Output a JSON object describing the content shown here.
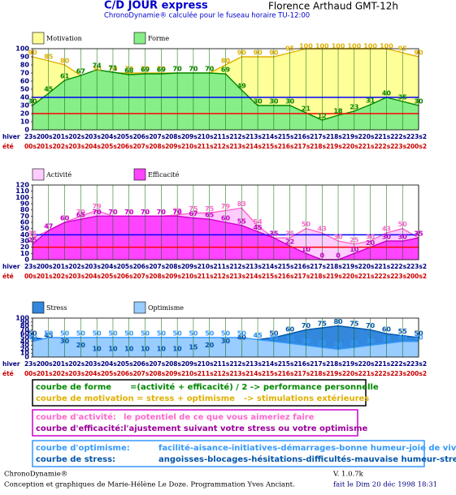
{
  "header": {
    "title": "C/D JOUR express",
    "name": "Florence Arthaud GMT-12h",
    "subtitle": "ChronoDynamie® calculée pour le fuseau horaire TU-12:00"
  },
  "chart_data": [
    {
      "type": "area",
      "ylim": [
        0,
        100
      ],
      "yticks": [
        0,
        10,
        20,
        30,
        40,
        50,
        60,
        70,
        80,
        90,
        100
      ],
      "grid": true,
      "category_row_label": "hiver",
      "secondary_row_label": "été",
      "categories": [
        "23s2",
        "00s2",
        "01s2",
        "02s2",
        "03s2",
        "04s2",
        "05s2",
        "06s2",
        "07s2",
        "08s2",
        "09s2",
        "10s2",
        "11s2",
        "12s2",
        "13s2",
        "14s2",
        "15s2",
        "16s2",
        "17s2",
        "18s2",
        "19s2",
        "20s2",
        "21s2",
        "22s2",
        "23s2"
      ],
      "secondary_categories": [
        "00s2",
        "01s2",
        "02s2",
        "03s2",
        "04s2",
        "05s2",
        "06s2",
        "07s2",
        "08s2",
        "09s2",
        "10s2",
        "11s2",
        "12s2",
        "13s2",
        "14s2",
        "15s2",
        "16s2",
        "17s2",
        "18s2",
        "19s2",
        "20s2",
        "21s2",
        "22s2",
        "23s2",
        "00s2"
      ],
      "reference_lines": [
        {
          "value": 40,
          "color": "#0000ff"
        },
        {
          "value": 20,
          "color": "#ff0000"
        }
      ],
      "series": [
        {
          "name": "Motivation",
          "color": "#ffff99",
          "line_color": "#e0b000",
          "values": [
            90,
            85,
            80,
            67,
            70,
            70,
            70,
            70,
            70,
            70,
            70,
            70,
            80,
            90,
            90,
            90,
            95,
            100,
            100,
            100,
            100,
            100,
            100,
            95,
            90
          ]
        },
        {
          "name": "Forme",
          "color": "#88ee88",
          "line_color": "#008800",
          "values": [
            30,
            45,
            61,
            67,
            74,
            71,
            68,
            69,
            69,
            70,
            70,
            70,
            69,
            49,
            30,
            30,
            30,
            21,
            12,
            18,
            23,
            31,
            40,
            35,
            30
          ]
        }
      ]
    },
    {
      "type": "area",
      "ylim": [
        0,
        120
      ],
      "yticks": [
        0,
        10,
        20,
        30,
        40,
        50,
        60,
        70,
        80,
        90,
        100,
        110,
        120
      ],
      "grid": true,
      "category_row_label": "hiver",
      "secondary_row_label": "été",
      "categories": [
        "23s2",
        "00s2",
        "01s2",
        "02s2",
        "03s2",
        "04s2",
        "05s2",
        "06s2",
        "07s2",
        "08s2",
        "09s2",
        "10s2",
        "11s2",
        "12s2",
        "13s2",
        "14s2",
        "15s2",
        "16s2",
        "17s2",
        "18s2",
        "19s2",
        "20s2",
        "21s2",
        "22s2",
        "23s2"
      ],
      "secondary_categories": [
        "00s2",
        "01s2",
        "02s2",
        "03s2",
        "04s2",
        "05s2",
        "06s2",
        "07s2",
        "08s2",
        "09s2",
        "10s2",
        "11s2",
        "12s2",
        "13s2",
        "14s2",
        "15s2",
        "16s2",
        "17s2",
        "18s2",
        "19s2",
        "20s2",
        "21s2",
        "22s2",
        "23s2",
        "00s2"
      ],
      "reference_lines": [
        {
          "value": 40,
          "color": "#0000ff"
        },
        {
          "value": 20,
          "color": "#ff0000"
        }
      ],
      "series": [
        {
          "name": "Activité",
          "color": "#ffccff",
          "line_color": "#ff66cc",
          "values": [
            35,
            47,
            60,
            70,
            79,
            70,
            70,
            70,
            70,
            72,
            75,
            75,
            79,
            83,
            54,
            35,
            35,
            50,
            43,
            30,
            25,
            30,
            43,
            50,
            35
          ]
        },
        {
          "name": "Efficacité",
          "color": "#ff44ff",
          "line_color": "#cc00cc",
          "values": [
            25,
            47,
            60,
            65,
            70,
            70,
            70,
            70,
            70,
            70,
            67,
            65,
            60,
            55,
            45,
            35,
            22,
            10,
            0,
            0,
            10,
            20,
            30,
            30,
            35
          ]
        }
      ]
    },
    {
      "type": "area",
      "ylim": [
        0,
        100
      ],
      "yticks": [
        0,
        10,
        20,
        30,
        40,
        50,
        60,
        70,
        80,
        90,
        100
      ],
      "grid": true,
      "category_row_label": "hiver",
      "secondary_row_label": "été",
      "categories": [
        "23s2",
        "00s2",
        "01s2",
        "02s2",
        "03s2",
        "04s2",
        "05s2",
        "06s2",
        "07s2",
        "08s2",
        "09s2",
        "10s2",
        "11s2",
        "12s2",
        "13s2",
        "14s2",
        "15s2",
        "16s2",
        "17s2",
        "18s2",
        "19s2",
        "20s2",
        "21s2",
        "22s2",
        "23s2"
      ],
      "secondary_categories": [
        "00s2",
        "01s2",
        "02s2",
        "03s2",
        "04s2",
        "05s2",
        "06s2",
        "07s2",
        "08s2",
        "09s2",
        "10s2",
        "11s2",
        "12s2",
        "13s2",
        "14s2",
        "15s2",
        "16s2",
        "17s2",
        "18s2",
        "19s2",
        "20s2",
        "21s2",
        "22s2",
        "23s2",
        "00s2"
      ],
      "reference_lines": [],
      "series": [
        {
          "name": "Stress",
          "color": "#3388dd",
          "line_color": "#0055aa",
          "values": [
            50,
            45,
            30,
            20,
            10,
            10,
            10,
            10,
            10,
            10,
            15,
            20,
            30,
            40,
            45,
            50,
            60,
            70,
            75,
            80,
            75,
            70,
            60,
            55,
            50
          ]
        },
        {
          "name": "Optimisme",
          "color": "#99ccff",
          "line_color": "#3399ff",
          "values": [
            40,
            50,
            50,
            50,
            50,
            50,
            50,
            50,
            50,
            50,
            50,
            50,
            50,
            50,
            45,
            40,
            35,
            30,
            25,
            20,
            25,
            30,
            35,
            40,
            40
          ]
        }
      ]
    }
  ],
  "legend_boxes": [
    {
      "border_color": "#000000",
      "lines": [
        {
          "term": "courbe de forme",
          "definition": "=(activité + efficacité) / 2  -> performance personnelle",
          "color": "#008800"
        },
        {
          "term": "courbe de motivation = stress + optimisme",
          "definition": "-> stimulations extérieures",
          "color": "#e0b000"
        }
      ]
    },
    {
      "border_color": "#cc00cc",
      "lines": [
        {
          "term": "courbe d'activité:",
          "definition": "le potentiel de ce que vous aimeriez faire",
          "color": "#ff66cc"
        },
        {
          "term": "courbe d'efficacité:",
          "definition": "l'ajustement suivant votre stress ou votre optimisme",
          "color": "#990099"
        }
      ]
    },
    {
      "border_color": "#3399ff",
      "lines": [
        {
          "term": "courbe d'optimisme:",
          "definition": "facilité-aisance-initiatives-démarrages-bonne humeur-joie de vivre",
          "color": "#3399ff"
        },
        {
          "term": "courbe de stress:",
          "definition": "angoisses-blocages-hésitations-difficultés-mauvaise humeur-stress",
          "color": "#0055aa"
        }
      ]
    }
  ],
  "footer": {
    "brand": "ChronoDynamie®",
    "credits": "Conception et graphiques de Marie-Hélène Le Doze. Programmation Yves Anciant.",
    "version": "V. 1.0.7k",
    "date": "fait le Dim 20 déc 1998 18:31"
  }
}
